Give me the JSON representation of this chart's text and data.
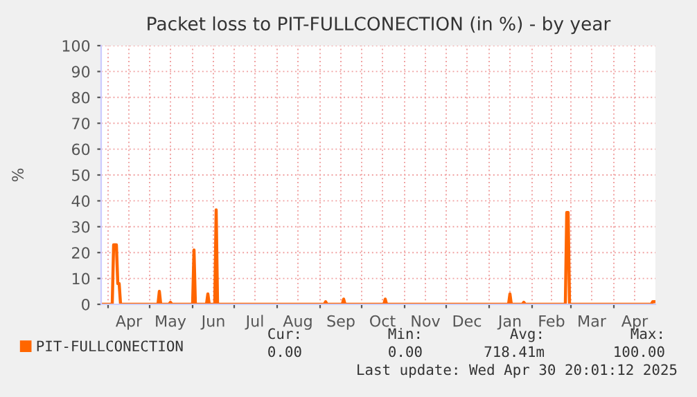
{
  "chart_data": {
    "type": "line",
    "title": "Packet loss to PIT-FULLCONECTION (in %) - by year",
    "ylabel": "%",
    "x": [
      "2024-03-27",
      "2024-04-04",
      "2024-04-05",
      "2024-04-07",
      "2024-04-08",
      "2024-04-09",
      "2024-04-10",
      "2024-05-07",
      "2024-05-08",
      "2024-05-09",
      "2024-05-15",
      "2024-05-16",
      "2024-05-17",
      "2024-06-01",
      "2024-06-02",
      "2024-06-03",
      "2024-06-11",
      "2024-06-12",
      "2024-06-13",
      "2024-06-17",
      "2024-06-18",
      "2024-06-19",
      "2024-09-04",
      "2024-09-05",
      "2024-09-06",
      "2024-09-17",
      "2024-09-18",
      "2024-09-19",
      "2024-10-17",
      "2024-10-18",
      "2024-10-19",
      "2025-01-15",
      "2025-01-16",
      "2025-01-17",
      "2025-01-25",
      "2025-01-26",
      "2025-01-27",
      "2025-02-25",
      "2025-02-26",
      "2025-02-27",
      "2025-02-28",
      "2025-04-28",
      "2025-04-29",
      "2025-05-01"
    ],
    "series": [
      {
        "name": "PIT-FULLCONECTION",
        "color": "#ff6600",
        "values": [
          0,
          0,
          23,
          23,
          8,
          8,
          0,
          0,
          5,
          0,
          0,
          0.8,
          0,
          0,
          21,
          0,
          0,
          4,
          0,
          0,
          36.5,
          0,
          0,
          1,
          0,
          0,
          2,
          0,
          0,
          2,
          0,
          0,
          4,
          0,
          0,
          0.8,
          0,
          0,
          35.5,
          35.5,
          0,
          0,
          1,
          1
        ]
      }
    ],
    "xlim": [
      "2024-03-27",
      "2025-05-01"
    ],
    "xticks": [
      {
        "value": "2024-04-01",
        "label": null
      },
      {
        "value": "2024-04-16",
        "label": "Apr"
      },
      {
        "value": "2024-05-01",
        "label": null
      },
      {
        "value": "2024-05-16",
        "label": "May"
      },
      {
        "value": "2024-06-01",
        "label": null
      },
      {
        "value": "2024-06-16",
        "label": "Jun"
      },
      {
        "value": "2024-07-01",
        "label": null
      },
      {
        "value": "2024-07-16",
        "label": "Jul"
      },
      {
        "value": "2024-08-01",
        "label": null
      },
      {
        "value": "2024-08-16",
        "label": "Aug"
      },
      {
        "value": "2024-09-01",
        "label": null
      },
      {
        "value": "2024-09-16",
        "label": "Sep"
      },
      {
        "value": "2024-10-01",
        "label": null
      },
      {
        "value": "2024-10-16",
        "label": "Oct"
      },
      {
        "value": "2024-11-01",
        "label": null
      },
      {
        "value": "2024-11-16",
        "label": "Nov"
      },
      {
        "value": "2024-12-01",
        "label": null
      },
      {
        "value": "2024-12-16",
        "label": "Dec"
      },
      {
        "value": "2025-01-01",
        "label": null
      },
      {
        "value": "2025-01-16",
        "label": "Jan"
      },
      {
        "value": "2025-02-01",
        "label": null
      },
      {
        "value": "2025-02-15",
        "label": "Feb"
      },
      {
        "value": "2025-03-01",
        "label": null
      },
      {
        "value": "2025-03-16",
        "label": "Mar"
      },
      {
        "value": "2025-04-01",
        "label": null
      },
      {
        "value": "2025-04-16",
        "label": "Apr"
      }
    ],
    "ylim": [
      0,
      100
    ],
    "yticks": [
      0,
      10,
      20,
      30,
      40,
      50,
      60,
      70,
      80,
      90,
      100
    ],
    "grid": true,
    "legend": "bottom",
    "marker": "none",
    "line_style": "solid",
    "annotations": [
      "Cur:",
      "Min:",
      "Avg:",
      "Max:",
      "0.00",
      "0.00",
      "718.41m",
      "100.00",
      "Last update: Wed Apr 30 20:01:12 2025"
    ]
  }
}
